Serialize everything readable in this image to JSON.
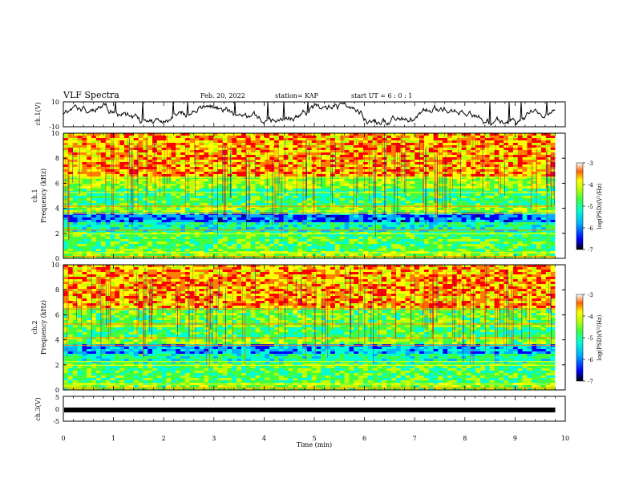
{
  "header": {
    "title": "VLF Spectra",
    "date": "Feb. 20, 2022",
    "station": "station= KAP",
    "start_ut": "start  UT  =   6  : 0  : 1"
  },
  "colors": {
    "spectrogram_scale": [
      "#000080",
      "#0000ff",
      "#00b0ff",
      "#00ffd0",
      "#40ff40",
      "#c0ff00",
      "#ffff00",
      "#ff8000",
      "#ff0000"
    ],
    "trace": "#000000"
  },
  "chart_data": [
    {
      "type": "line",
      "name": "ch1-waveform",
      "ylabel": "ch.1(V)",
      "ylim": [
        -10,
        10
      ],
      "ytick_labels": [
        "10",
        "-10"
      ],
      "xlim": [
        0,
        10
      ],
      "shape": "irregular oscillation, mostly between about -6 and 4 V with spikes near 10 V"
    },
    {
      "type": "heatmap",
      "name": "ch1-spectrogram",
      "ylabel": "ch.1 Frequency (kHz)",
      "ylim": [
        0,
        10
      ],
      "ytick_labels": [
        "0",
        "2",
        "4",
        "6",
        "8",
        "10"
      ],
      "xlim": [
        0,
        10
      ],
      "colorbar": {
        "label": "log(PSD)(V²/Hz)",
        "range": [
          -7,
          -3
        ],
        "tick_labels": [
          "-3",
          "-4",
          "-5",
          "-6",
          "-7"
        ]
      }
    },
    {
      "type": "heatmap",
      "name": "ch2-spectrogram",
      "ylabel": "ch.2 Frequency (kHz)",
      "ylim": [
        0,
        10
      ],
      "ytick_labels": [
        "0",
        "2",
        "4",
        "6",
        "8",
        "10"
      ],
      "xlim": [
        0,
        10
      ],
      "colorbar": {
        "label": "log(PSD)(V²/Hz)",
        "range": [
          -7,
          -3
        ],
        "tick_labels": [
          "-3",
          "-4",
          "-5",
          "-6",
          "-7"
        ]
      }
    },
    {
      "type": "line",
      "name": "ch3-waveform",
      "ylabel": "ch.3(V)",
      "ylim": [
        -5,
        5
      ],
      "ytick_labels": [
        "5",
        "0",
        "-5"
      ],
      "xlim": [
        0,
        10
      ],
      "shape": "flat, near 0 V"
    }
  ],
  "xaxis": {
    "label": "Time  (min)",
    "tick_labels": [
      "0",
      "1",
      "2",
      "3",
      "4",
      "5",
      "6",
      "7",
      "8",
      "9",
      "10"
    ],
    "data_end_min": 9.8
  }
}
